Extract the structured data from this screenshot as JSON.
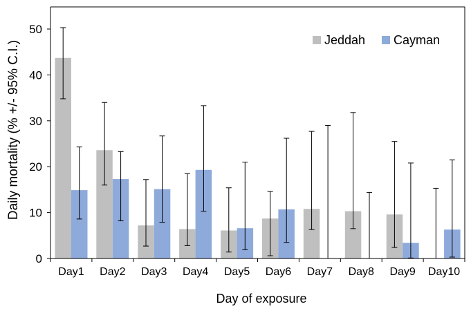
{
  "chart_data": {
    "type": "bar",
    "title": "",
    "xlabel": "Day of exposure",
    "ylabel": "Daily mortality (% +/- 95% C.I.)",
    "ylim": [
      0,
      50
    ],
    "yticks": [
      0,
      10,
      20,
      30,
      40,
      50
    ],
    "grid": false,
    "legend_position": "top-right",
    "categories": [
      "Day1",
      "Day2",
      "Day3",
      "Day4",
      "Day5",
      "Day6",
      "Day7",
      "Day8",
      "Day9",
      "Day10"
    ],
    "series": [
      {
        "name": "Jeddah",
        "color": "#bfbfbf",
        "values": [
          43.7,
          23.6,
          7.2,
          6.4,
          6.1,
          8.7,
          10.8,
          10.3,
          9.6,
          0
        ],
        "ci_low": [
          34.8,
          16.0,
          2.7,
          2.8,
          1.4,
          0.6,
          6.3,
          6.5,
          2.4,
          0
        ],
        "ci_high": [
          50.3,
          34.0,
          17.2,
          18.5,
          15.4,
          14.6,
          27.7,
          31.8,
          25.5,
          15.3
        ]
      },
      {
        "name": "Cayman",
        "color": "#8eaadb",
        "values": [
          14.9,
          17.3,
          15.1,
          19.3,
          6.6,
          10.7,
          0,
          0,
          3.4,
          6.3
        ],
        "ci_low": [
          8.6,
          8.2,
          7.9,
          10.3,
          1.9,
          3.5,
          0,
          0,
          0.1,
          0.3
        ],
        "ci_high": [
          24.3,
          23.3,
          26.7,
          33.3,
          21.0,
          26.2,
          29.0,
          14.4,
          20.8,
          21.5
        ]
      }
    ]
  }
}
